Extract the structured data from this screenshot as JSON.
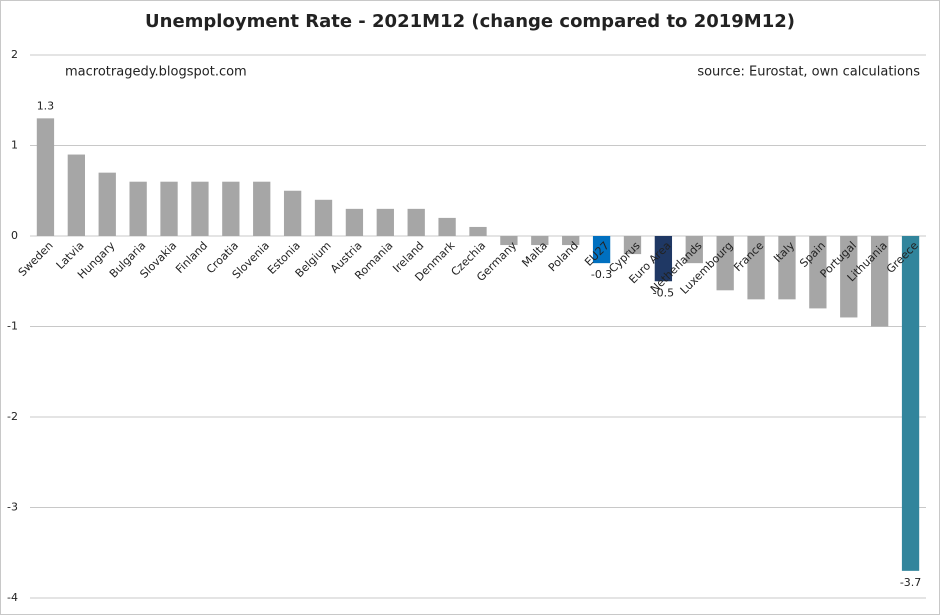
{
  "chart_data": {
    "type": "bar",
    "title": "Unemployment Rate - 2021M12 (change compared to 2019M12)",
    "annotations": [
      "macrotragedy.blogspot.com",
      "source: Eurostat, own calculations"
    ],
    "categories": [
      "Sweden",
      "Latvia",
      "Hungary",
      "Bulgaria",
      "Slovakia",
      "Finland",
      "Croatia",
      "Slovenia",
      "Estonia",
      "Belgium",
      "Austria",
      "Romania",
      "Ireland",
      "Denmark",
      "Czechia",
      "Germany",
      "Malta",
      "Poland",
      "EU27",
      "Cyprus",
      "Euro Area",
      "Netherlands",
      "Luxembourg",
      "France",
      "Italy",
      "Spain",
      "Portugal",
      "Lithuania",
      "Greece"
    ],
    "values": [
      1.3,
      0.9,
      0.7,
      0.6,
      0.6,
      0.6,
      0.6,
      0.6,
      0.5,
      0.4,
      0.3,
      0.3,
      0.3,
      0.2,
      0.1,
      -0.1,
      -0.1,
      -0.1,
      -0.3,
      -0.2,
      -0.5,
      -0.3,
      -0.6,
      -0.7,
      -0.7,
      -0.8,
      -0.9,
      -1.0,
      -3.7
    ],
    "value_labels": [
      "1.3",
      null,
      null,
      null,
      null,
      null,
      null,
      null,
      null,
      null,
      null,
      null,
      null,
      null,
      null,
      null,
      null,
      null,
      "-0.3",
      null,
      "-0.5",
      null,
      null,
      null,
      null,
      null,
      null,
      null,
      "-3.7"
    ],
    "colors": [
      "#a6a6a6",
      "#a6a6a6",
      "#a6a6a6",
      "#a6a6a6",
      "#a6a6a6",
      "#a6a6a6",
      "#a6a6a6",
      "#a6a6a6",
      "#a6a6a6",
      "#a6a6a6",
      "#a6a6a6",
      "#a6a6a6",
      "#a6a6a6",
      "#a6a6a6",
      "#a6a6a6",
      "#a6a6a6",
      "#a6a6a6",
      "#a6a6a6",
      "#0070c0",
      "#a6a6a6",
      "#1f3864",
      "#a6a6a6",
      "#a6a6a6",
      "#a6a6a6",
      "#a6a6a6",
      "#a6a6a6",
      "#a6a6a6",
      "#a6a6a6",
      "#31859c"
    ],
    "ylim": [
      -4,
      2
    ],
    "yticks": [
      -4,
      -3,
      -2,
      -1,
      0,
      1,
      2
    ],
    "grid": true
  }
}
